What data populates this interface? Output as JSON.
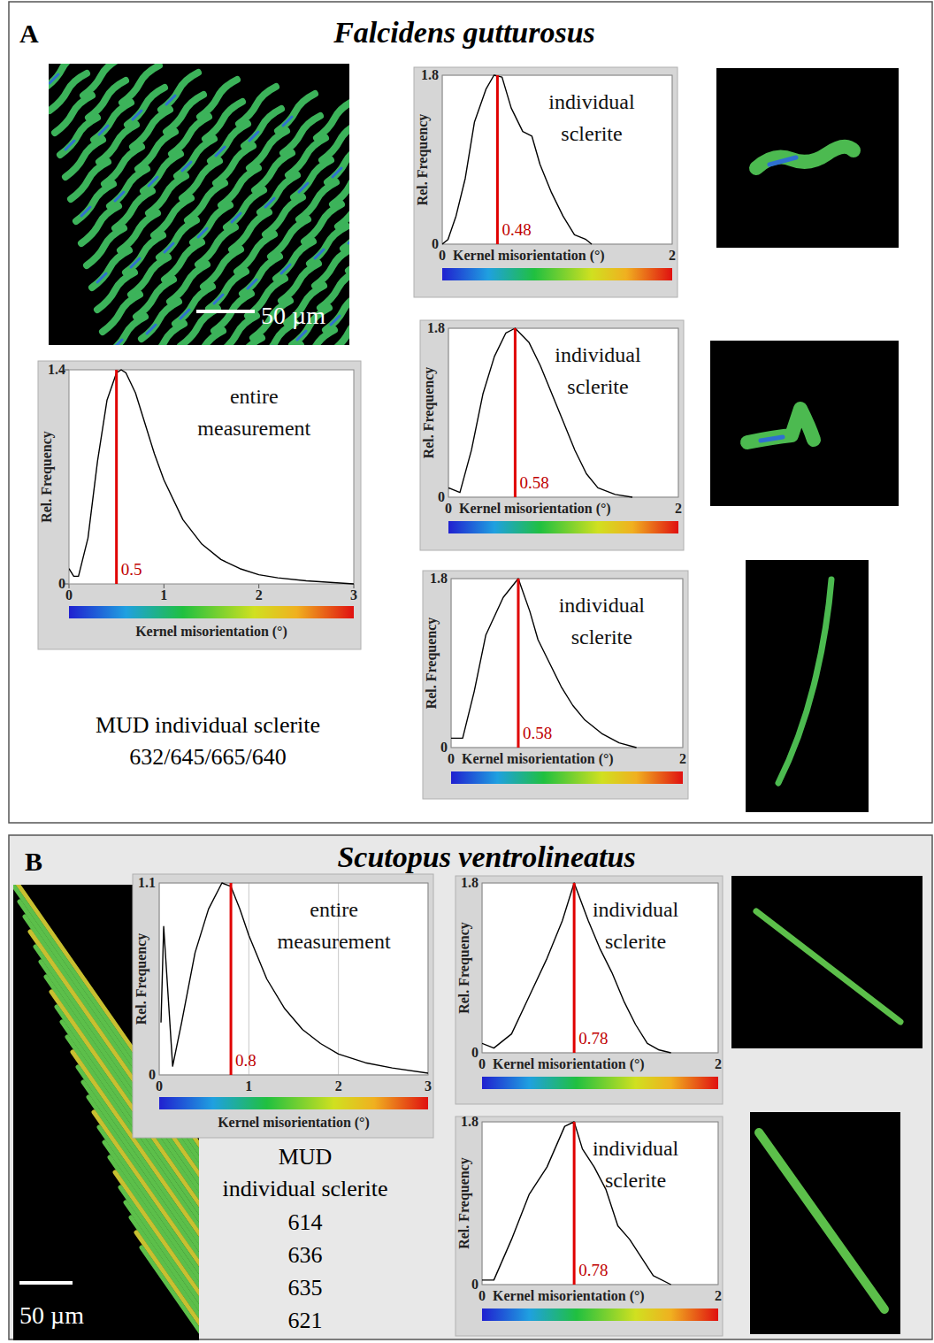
{
  "panels": [
    {
      "letter": "A",
      "title": "Falcidens gutturosus",
      "scale_bar": "50 µm",
      "mud_label": "MUD individual sclerite",
      "mud_values": "632/645/665/640"
    },
    {
      "letter": "B",
      "title": "Scutopus ventrolineatus",
      "scale_bar": "50 µm",
      "mud_label": "MUD individual sclerite",
      "mud_values": [
        614,
        636,
        635,
        621
      ]
    }
  ],
  "chart_data": [
    {
      "type": "line",
      "title": "entire measurement",
      "x_label": "Kernel misorientation (°)",
      "y_label": "Rel. Frequency",
      "color": "#000000",
      "grid": false,
      "x": [
        0,
        0.05,
        0.1,
        0.2,
        0.3,
        0.4,
        0.5,
        0.55,
        0.6,
        0.7,
        0.8,
        0.9,
        1.0,
        1.2,
        1.4,
        1.6,
        1.8,
        2.0,
        2.2,
        2.5,
        3.0
      ],
      "values": [
        0.1,
        0.05,
        0.05,
        0.3,
        0.8,
        1.2,
        1.38,
        1.4,
        1.38,
        1.25,
        1.05,
        0.85,
        0.68,
        0.42,
        0.26,
        0.16,
        0.1,
        0.06,
        0.04,
        0.02,
        0.0
      ],
      "xlim": [
        0,
        3
      ],
      "ylim": [
        0,
        1.4
      ],
      "xticks": [
        0,
        1,
        2,
        3
      ],
      "yticks": [
        0,
        1.4
      ],
      "annotations": [
        {
          "x": 0.5,
          "color": "#e00000"
        }
      ]
    },
    {
      "type": "line",
      "title": "individual sclerite",
      "x_label": "Kernel misorientation (°)",
      "y_label": "Rel. Frequency",
      "color": "#000000",
      "grid": true,
      "x": [
        0,
        0.05,
        0.12,
        0.2,
        0.28,
        0.38,
        0.45,
        0.52,
        0.6,
        0.7,
        0.78,
        0.85,
        0.95,
        1.05,
        1.15,
        1.25,
        1.3
      ],
      "values": [
        0,
        0.05,
        0.3,
        0.7,
        1.3,
        1.65,
        1.8,
        1.78,
        1.45,
        1.2,
        1.15,
        0.85,
        0.55,
        0.3,
        0.1,
        0.05,
        0
      ],
      "xlim": [
        0,
        2
      ],
      "ylim": [
        0,
        1.8
      ],
      "xticks": [
        0,
        2
      ],
      "yticks": [
        0,
        1.8
      ],
      "annotations": [
        {
          "x": 0.48,
          "color": "#e00000"
        }
      ]
    },
    {
      "type": "line",
      "title": "individual sclerite",
      "x_label": "Kernel misorientation (°)",
      "y_label": "Rel. Frequency",
      "color": "#000000",
      "grid": true,
      "x": [
        0,
        0.1,
        0.2,
        0.3,
        0.4,
        0.5,
        0.58,
        0.7,
        0.8,
        0.9,
        1.0,
        1.1,
        1.2,
        1.3,
        1.45,
        1.6
      ],
      "values": [
        0.1,
        0.05,
        0.5,
        1.1,
        1.5,
        1.75,
        1.8,
        1.65,
        1.4,
        1.1,
        0.8,
        0.5,
        0.25,
        0.1,
        0.03,
        0
      ],
      "xlim": [
        0,
        2
      ],
      "ylim": [
        0,
        1.8
      ],
      "xticks": [
        0,
        2
      ],
      "yticks": [
        0,
        1.8
      ],
      "annotations": [
        {
          "x": 0.58,
          "color": "#e00000"
        }
      ]
    },
    {
      "type": "line",
      "title": "individual sclerite",
      "x_label": "Kernel misorientation (°)",
      "y_label": "Rel. Frequency",
      "color": "#000000",
      "grid": true,
      "x": [
        0,
        0.1,
        0.2,
        0.3,
        0.45,
        0.58,
        0.68,
        0.75,
        0.85,
        0.95,
        1.05,
        1.15,
        1.3,
        1.45,
        1.6
      ],
      "values": [
        0.1,
        0.1,
        0.6,
        1.2,
        1.6,
        1.8,
        1.45,
        1.15,
        0.9,
        0.65,
        0.45,
        0.3,
        0.15,
        0.05,
        0
      ],
      "xlim": [
        0,
        2
      ],
      "ylim": [
        0,
        1.8
      ],
      "xticks": [
        0,
        2
      ],
      "yticks": [
        0,
        1.8
      ],
      "annotations": [
        {
          "x": 0.58,
          "color": "#e00000"
        }
      ]
    },
    {
      "type": "line",
      "title": "entire measurement",
      "x_label": "Kernel misorientation (°)",
      "y_label": "Rel. Frequency",
      "color": "#000000",
      "grid": true,
      "x": [
        0.02,
        0.05,
        0.15,
        0.25,
        0.4,
        0.55,
        0.7,
        0.8,
        0.9,
        1.0,
        1.2,
        1.4,
        1.6,
        1.8,
        2.0,
        2.3,
        2.6,
        3.0
      ],
      "values": [
        0.3,
        0.85,
        0.05,
        0.3,
        0.7,
        0.95,
        1.1,
        1.08,
        0.95,
        0.8,
        0.55,
        0.38,
        0.26,
        0.18,
        0.12,
        0.07,
        0.04,
        0.01
      ],
      "xlim": [
        0,
        3
      ],
      "ylim": [
        0,
        1.1
      ],
      "xticks": [
        0,
        1,
        2,
        3
      ],
      "yticks": [
        0,
        1.1
      ],
      "annotations": [
        {
          "x": 0.8,
          "color": "#e00000"
        }
      ]
    },
    {
      "type": "line",
      "title": "individual sclerite",
      "x_label": "Kernel misorientation (°)",
      "y_label": "Rel. Frequency",
      "color": "#000000",
      "grid": true,
      "x": [
        0,
        0.1,
        0.25,
        0.4,
        0.55,
        0.68,
        0.78,
        0.9,
        1.0,
        1.1,
        1.2,
        1.3,
        1.4,
        1.5,
        1.6
      ],
      "values": [
        0.1,
        0.05,
        0.2,
        0.6,
        1.0,
        1.4,
        1.8,
        1.4,
        1.1,
        0.85,
        0.55,
        0.3,
        0.1,
        0.03,
        0
      ],
      "xlim": [
        0,
        2
      ],
      "ylim": [
        0,
        1.8
      ],
      "xticks": [
        0,
        2
      ],
      "yticks": [
        0,
        1.8
      ],
      "annotations": [
        {
          "x": 0.78,
          "color": "#e00000"
        }
      ]
    },
    {
      "type": "line",
      "title": "individual sclerite",
      "x_label": "Kernel misorientation (°)",
      "y_label": "Rel. Frequency",
      "color": "#000000",
      "grid": true,
      "x": [
        0,
        0.1,
        0.25,
        0.4,
        0.55,
        0.7,
        0.78,
        0.85,
        0.95,
        1.05,
        1.15,
        1.25,
        1.35,
        1.45,
        1.6
      ],
      "values": [
        0.05,
        0.05,
        0.5,
        1.0,
        1.3,
        1.75,
        1.8,
        1.5,
        1.3,
        1.05,
        0.65,
        0.5,
        0.3,
        0.1,
        0
      ],
      "xlim": [
        0,
        2
      ],
      "ylim": [
        0,
        1.8
      ],
      "xticks": [
        0,
        2
      ],
      "yticks": [
        0,
        1.8
      ],
      "annotations": [
        {
          "x": 0.78,
          "color": "#e00000"
        }
      ]
    }
  ]
}
